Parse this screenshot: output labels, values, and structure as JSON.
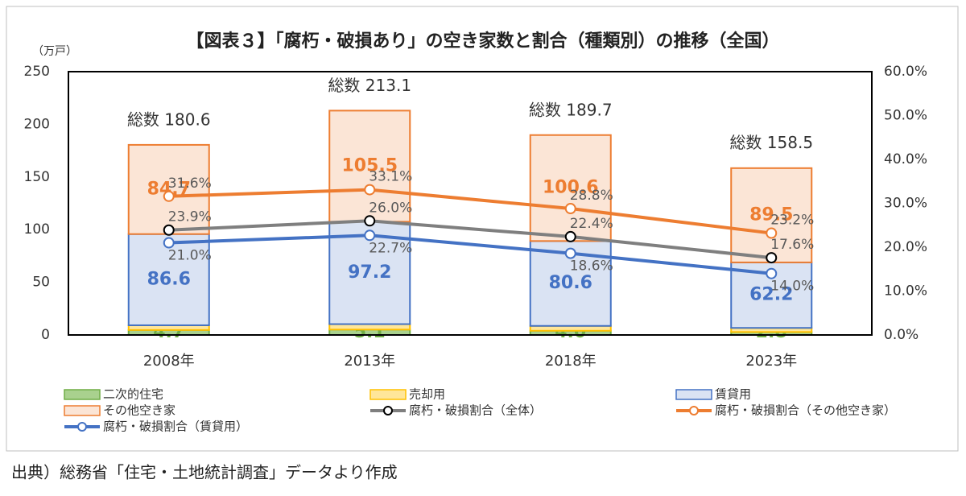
{
  "chart_data": {
    "type": "bar",
    "title": "【図表３】「腐朽・破損あり」の空き家数と割合（種類別）の推移（全国）",
    "y_unit_label": "（万戸）",
    "categories": [
      "2008年",
      "2013年",
      "2018年",
      "2023年"
    ],
    "series": [
      {
        "name": "二次的住宅",
        "type": "bar",
        "color": "#a9d18e",
        "border": "#70ad47",
        "label_color": "#70ad47",
        "values": [
          4.7,
          5.1,
          4.0,
          2.8
        ],
        "value_labels": [
          "4.7",
          "5.1",
          "4.0",
          "2.8"
        ]
      },
      {
        "name": "売却用",
        "type": "bar",
        "color": "#ffe699",
        "border": "#ffc000",
        "label_color": "#ed7d31",
        "values": [
          4.5,
          5.2,
          4.6,
          3.9
        ]
      },
      {
        "name": "賃貸用",
        "type": "bar",
        "color": "#dae3f3",
        "border": "#4472c4",
        "label_color": "#4472c4",
        "values": [
          86.6,
          97.2,
          80.6,
          62.2
        ]
      },
      {
        "name": "その他空き家",
        "type": "bar",
        "color": "#fbe5d6",
        "border": "#ed7d31",
        "label_color": "#ed7d31",
        "values": [
          84.7,
          105.5,
          100.6,
          89.5
        ]
      },
      {
        "name": "腐朽・破損割合（全体）",
        "type": "line",
        "axis": "y2",
        "color": "#7f7f7f",
        "marker_color": "#000000",
        "values": [
          23.9,
          26.0,
          22.4,
          17.6
        ],
        "value_labels": [
          "23.9%",
          "26.0%",
          "22.4%",
          "17.6%"
        ]
      },
      {
        "name": "腐朽・破損割合（その他空き家）",
        "type": "line",
        "axis": "y2",
        "color": "#ed7d31",
        "marker_color": "#ed7d31",
        "values": [
          31.6,
          33.1,
          28.8,
          23.2
        ],
        "value_labels": [
          "31.6%",
          "33.1%",
          "28.8%",
          "23.2%"
        ]
      },
      {
        "name": "腐朽・破損割合（賃貸用）",
        "type": "line",
        "axis": "y2",
        "color": "#4472c4",
        "marker_color": "#4472c4",
        "values": [
          21.0,
          22.7,
          18.6,
          14.0
        ],
        "value_labels": [
          "21.0%",
          "22.7%",
          "18.6%",
          "14.0%"
        ]
      }
    ],
    "totals": {
      "values": [
        180.6,
        213.1,
        189.7,
        158.5
      ],
      "value_labels": [
        "総数 180.6",
        "総数 213.1",
        "総数 189.7",
        "総数 158.5"
      ]
    },
    "ylim": [
      0,
      250
    ],
    "yticks": [
      0,
      50,
      100,
      150,
      200,
      250
    ],
    "y2lim": [
      0,
      60
    ],
    "y2ticks": [
      {
        "value": 0,
        "label": "0.0%"
      },
      {
        "value": 10,
        "label": "10.0%"
      },
      {
        "value": 20,
        "label": "20.0%"
      },
      {
        "value": 30,
        "label": "30.0%"
      },
      {
        "value": 40,
        "label": "40.0%"
      },
      {
        "value": 50,
        "label": "50.0%"
      },
      {
        "value": 60,
        "label": "60.0%"
      }
    ],
    "grid": false
  },
  "source": "出典）総務省「住宅・土地統計調査」データより作成"
}
